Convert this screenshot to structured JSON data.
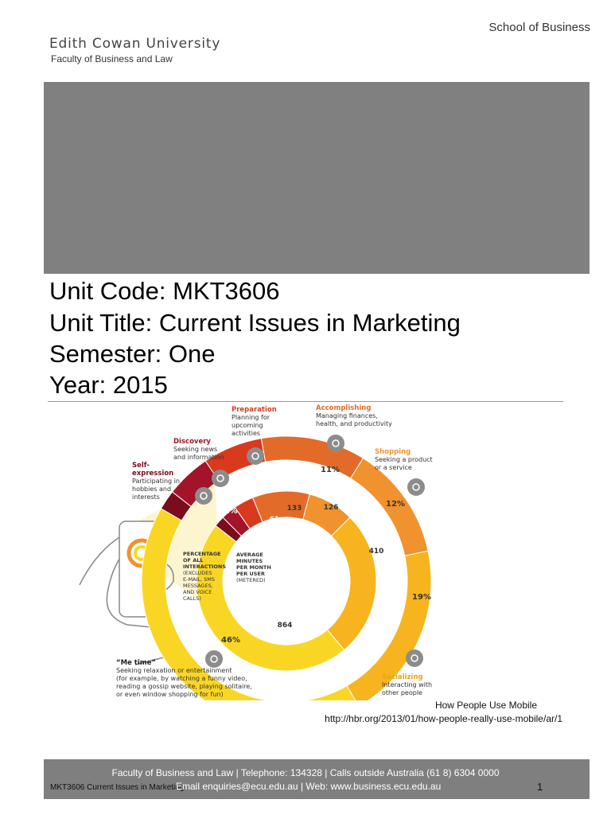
{
  "header": {
    "school": "School of Business",
    "university": "Edith Cowan University",
    "faculty": "Faculty of Business and Law"
  },
  "unit": {
    "code_line": "Unit Code: MKT3606",
    "title_line": "Unit Title: Current Issues in Marketing",
    "semester_line": "Semester: One",
    "year_line": "Year: 2015"
  },
  "infographic": {
    "center_left": [
      "PERCENTAGE",
      "OF ALL",
      "INTERACTIONS",
      "(EXCLUDES",
      "E-MAIL, SMS",
      "MESSAGES,",
      "AND VOICE",
      "CALLS)"
    ],
    "center_right": [
      "AVERAGE",
      "MINUTES",
      "PER MONTH",
      "PER USER",
      "(METERED)"
    ],
    "categories": [
      {
        "name": "Self-\nexpression",
        "desc": "Participating in\nhobbies and\ninterests",
        "pct": "1%",
        "minutes": "21",
        "color": "#7a0c1e"
      },
      {
        "name": "Discovery",
        "desc": "Seeking news\nand information",
        "pct": "4%",
        "minutes": "47",
        "color": "#a3132a"
      },
      {
        "name": "Preparation",
        "desc": "Planning for\nupcoming\nactivities",
        "pct": "7%",
        "minutes": "61",
        "color": "#d9391c"
      },
      {
        "name": "Accomplishing",
        "desc": "Managing finances,\nhealth, and productivity",
        "pct": "11%",
        "minutes": "133",
        "color": "#e36b2a"
      },
      {
        "name": "Shopping",
        "desc": "Seeking a product\nor a service",
        "pct": "12%",
        "minutes": "126",
        "color": "#f0922d"
      },
      {
        "name": "Socializing",
        "desc": "Interacting with\nother people",
        "pct": "19%",
        "minutes": "410",
        "color": "#f7b41f"
      },
      {
        "name": "“Me time”",
        "desc": "Seeking relaxation or entertainment\n(for example, by watching a funny video,\nreading a gossip website, playing solitaire,\nor even window shopping for fun)",
        "pct": "46%",
        "minutes": "864",
        "color": "#fad624"
      }
    ]
  },
  "caption": {
    "title": "How People Use Mobile",
    "url": "http://hbr.org/2013/01/how-people-really-use-mobile/ar/1"
  },
  "footer": {
    "line1": "Faculty of Business and Law | Telephone: 134328 | Calls outside Australia (61 8) 6304 0000",
    "line2": "Email enquiries@ecu.edu.au |  Web: www.business.ecu.edu.au",
    "unit": "MKT3606 Current Issues in Marketing",
    "page": "1"
  }
}
